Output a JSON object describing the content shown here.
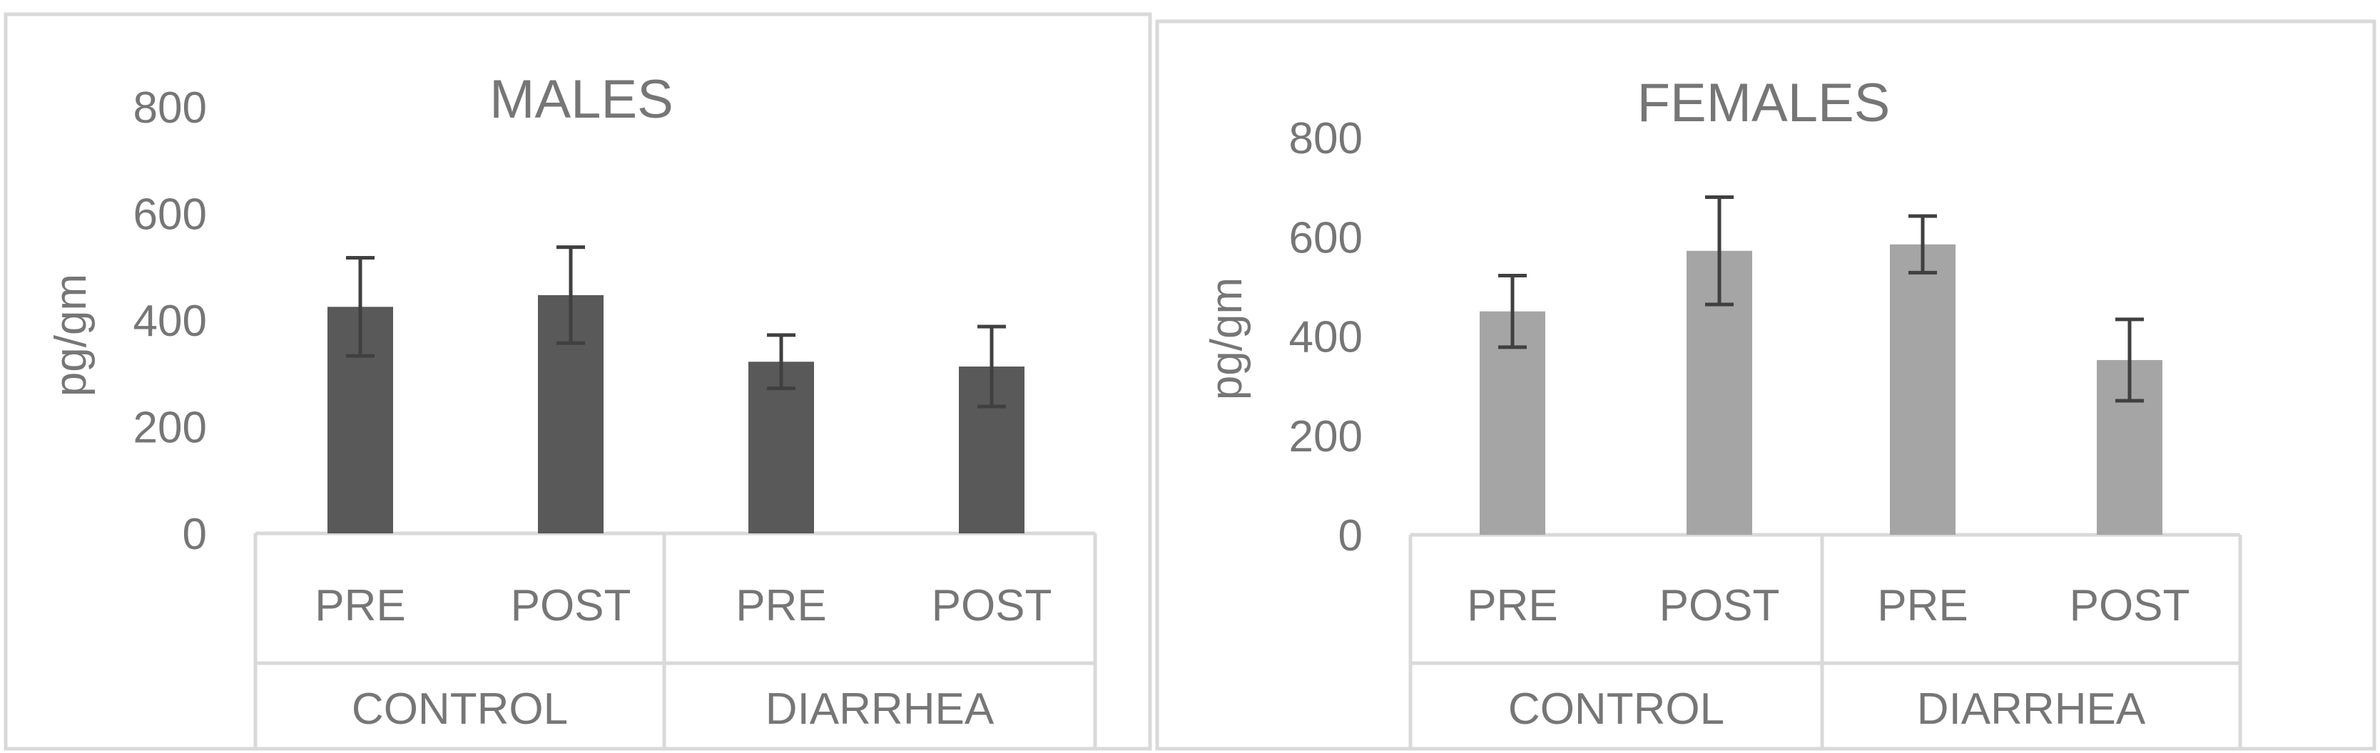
{
  "colors": {
    "males_bar": "#595959",
    "females_bar": "#a5a5a5",
    "error_bar": "#404040",
    "text": "#767676",
    "frame": "#d9d9d9"
  },
  "chart_data": [
    {
      "type": "bar",
      "title": "MALES",
      "ylabel": "pg/gm",
      "ylim": [
        0,
        800
      ],
      "yticks": [
        "800",
        "600",
        "400",
        "200",
        "0"
      ],
      "groups": [
        "CONTROL",
        "DIARRHEA"
      ],
      "categories": [
        "PRE",
        "POST",
        "PRE",
        "POST"
      ],
      "values": [
        425,
        447,
        322,
        313
      ],
      "errors": [
        92,
        90,
        50,
        75
      ],
      "grid": false
    },
    {
      "type": "bar",
      "title": "FEMALES",
      "ylabel": "pg/gm",
      "ylim": [
        0,
        800
      ],
      "yticks": [
        "800",
        "600",
        "400",
        "200",
        "0"
      ],
      "groups": [
        "CONTROL",
        "DIARRHEA"
      ],
      "categories": [
        "PRE",
        "POST",
        "PRE",
        "POST"
      ],
      "values": [
        450,
        572,
        585,
        352
      ],
      "errors": [
        72,
        108,
        57,
        82
      ],
      "grid": false
    }
  ]
}
